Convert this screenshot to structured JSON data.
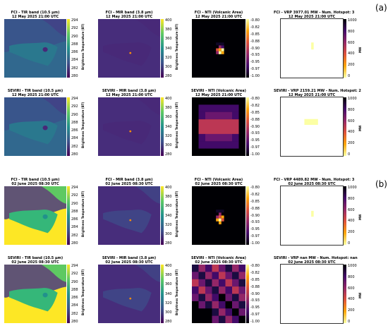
{
  "figure": {
    "groups": [
      {
        "label": "(a)",
        "rows": [
          {
            "sensor": "FCI",
            "panels": [
              {
                "kind": "tir",
                "title": "FCI - TIR band (10.5 µm)",
                "subtitle": "12 May 2025 21:00 UTC",
                "colorbar": {
                  "label": "Brightness Temperature (BT)",
                  "ticks": [
                    "294",
                    "292",
                    "290",
                    "288",
                    "286",
                    "284",
                    "282",
                    "280"
                  ],
                  "range": [
                    280,
                    295
                  ],
                  "cmap": "viridis"
                }
              },
              {
                "kind": "mir",
                "title": "FCI - MIR band (3.8 µm)",
                "subtitle": "12 May 2025 21:00 UTC",
                "colorbar": {
                  "label": "Brightness Temperature (BT)",
                  "ticks": [
                    "400",
                    "380",
                    "360",
                    "340",
                    "320",
                    "300",
                    "280"
                  ],
                  "range": [
                    280,
                    400
                  ],
                  "cmap": "viridis"
                }
              },
              {
                "kind": "nti",
                "title": "FCI - NTI (Volcanic Area)",
                "subtitle": "12 May 2025 21:00 UTC",
                "colorbar": {
                  "label": "",
                  "ticks": [
                    "-0.80",
                    "-0.82",
                    "-0.85",
                    "-0.88",
                    "-0.90",
                    "-0.93",
                    "-0.95",
                    "-0.97",
                    "-1.00"
                  ],
                  "range": [
                    -1.0,
                    -0.8
                  ],
                  "cmap": "inferno"
                }
              },
              {
                "kind": "vrp",
                "title": "FCI - VRP 3977.01 MW - Num. Hotspot: 3",
                "subtitle": "12 May 2025 21:00 UTC",
                "colorbar": {
                  "label": "MW",
                  "ticks": [
                    "1000",
                    "800",
                    "600",
                    "400",
                    "200",
                    "0"
                  ],
                  "range": [
                    0,
                    1000
                  ],
                  "cmap": "inferno_r"
                }
              }
            ]
          },
          {
            "sensor": "SEVIRI",
            "panels": [
              {
                "kind": "tir",
                "title": "SEVIRI - TIR band (10.5 µm)",
                "subtitle": "12 May 2025 21:00 UTC",
                "colorbar": {
                  "label": "Brightness Temperature (BT)",
                  "ticks": [
                    "294",
                    "292",
                    "290",
                    "288",
                    "286",
                    "284",
                    "282",
                    "280"
                  ],
                  "range": [
                    280,
                    295
                  ],
                  "cmap": "viridis"
                }
              },
              {
                "kind": "mir",
                "title": "SEVIRI - MIR band (3.8 µm)",
                "subtitle": "12 May 2025 21:00 UTC",
                "colorbar": {
                  "label": "Brightness Temperature (BT)",
                  "ticks": [
                    "400",
                    "380",
                    "360",
                    "340",
                    "320",
                    "300",
                    "280"
                  ],
                  "range": [
                    280,
                    400
                  ],
                  "cmap": "viridis"
                }
              },
              {
                "kind": "nti",
                "title": "SEVIRI - NTI (Volcanic Area)",
                "subtitle": "12 May 2025 21:00 UTC",
                "colorbar": {
                  "label": "",
                  "ticks": [
                    "-0.80",
                    "-0.82",
                    "-0.85",
                    "-0.88",
                    "-0.90",
                    "-0.93",
                    "-0.95",
                    "-0.97",
                    "-1.00"
                  ],
                  "range": [
                    -1.0,
                    -0.8
                  ],
                  "cmap": "inferno"
                }
              },
              {
                "kind": "vrp",
                "title": "SEVIRI - VRP 2159.21 MW - Num. Hotspot: 2",
                "subtitle": "12 May 2025 21:00 UTC",
                "colorbar": {
                  "label": "MW",
                  "ticks": [
                    "1000",
                    "800",
                    "600",
                    "400",
                    "200",
                    "0"
                  ],
                  "range": [
                    0,
                    1000
                  ],
                  "cmap": "inferno_r"
                }
              }
            ]
          }
        ]
      },
      {
        "label": "(b)",
        "rows": [
          {
            "sensor": "FCI",
            "panels": [
              {
                "kind": "tir",
                "title": "FCI - TIR band (10.5 µm)",
                "subtitle": "02 June 2025 08:30 UTC",
                "colorbar": {
                  "label": "Brightness Temperature (BT)",
                  "ticks": [
                    "294",
                    "292",
                    "290",
                    "288",
                    "286",
                    "284",
                    "282",
                    "280"
                  ],
                  "range": [
                    280,
                    295
                  ],
                  "cmap": "viridis"
                }
              },
              {
                "kind": "mir",
                "title": "FCI - MIR band (3.8 µm)",
                "subtitle": "02 June 2025 08:30 UTC",
                "colorbar": {
                  "label": "Brightness Temperature (BT)",
                  "ticks": [
                    "400",
                    "380",
                    "360",
                    "340",
                    "320",
                    "300",
                    "280"
                  ],
                  "range": [
                    280,
                    400
                  ],
                  "cmap": "viridis"
                }
              },
              {
                "kind": "nti",
                "title": "FCI - NTI (Volcanic Area)",
                "subtitle": "02 June 2025 08:30 UTC",
                "colorbar": {
                  "label": "",
                  "ticks": [
                    "-0.80",
                    "-0.82",
                    "-0.85",
                    "-0.88",
                    "-0.90",
                    "-0.93",
                    "-0.95",
                    "-0.97",
                    "-1.00"
                  ],
                  "range": [
                    -1.0,
                    -0.8
                  ],
                  "cmap": "inferno"
                }
              },
              {
                "kind": "vrp",
                "title": "FCI - VRP 4489.82 MW - Num. Hotspot: 3",
                "subtitle": "02 June 2025 08:30 UTC",
                "colorbar": {
                  "label": "MW",
                  "ticks": [
                    "1000",
                    "800",
                    "600",
                    "400",
                    "200",
                    "0"
                  ],
                  "range": [
                    0,
                    1000
                  ],
                  "cmap": "inferno_r"
                }
              }
            ]
          },
          {
            "sensor": "SEVIRI",
            "panels": [
              {
                "kind": "tir",
                "title": "SEVIRI - TIR band (10.5 µm)",
                "subtitle": "02 June 2025 08:30 UTC",
                "colorbar": {
                  "label": "Brightness Temperature (BT)",
                  "ticks": [
                    "294",
                    "292",
                    "290",
                    "288",
                    "286",
                    "284",
                    "282",
                    "280"
                  ],
                  "range": [
                    280,
                    295
                  ],
                  "cmap": "viridis"
                }
              },
              {
                "kind": "mir",
                "title": "SEVIRI - MIR band (3.8 µm)",
                "subtitle": "02 June 2025 08:30 UTC",
                "colorbar": {
                  "label": "Brightness Temperature (BT)",
                  "ticks": [
                    "400",
                    "380",
                    "360",
                    "340",
                    "320",
                    "300",
                    "280"
                  ],
                  "range": [
                    280,
                    400
                  ],
                  "cmap": "viridis"
                }
              },
              {
                "kind": "nti",
                "title": "SEVIRI - NTI (Volcanic Area)",
                "subtitle": "02 June 2025 08:30 UTC",
                "colorbar": {
                  "label": "",
                  "ticks": [
                    "-0.80",
                    "-0.82",
                    "-0.85",
                    "-0.88",
                    "-0.90",
                    "-0.93",
                    "-0.95",
                    "-0.97",
                    "-1.00"
                  ],
                  "range": [
                    -1.0,
                    -0.8
                  ],
                  "cmap": "inferno"
                }
              },
              {
                "kind": "vrp",
                "title": "SEVIRI - VRP nan MW - Num. Hotspot: nan",
                "subtitle": "02 June 2025 08:30 UTC",
                "colorbar": {
                  "label": "MW",
                  "ticks": [
                    "1000",
                    "800",
                    "600",
                    "400",
                    "200",
                    "0"
                  ],
                  "range": [
                    0,
                    1000
                  ],
                  "cmap": "inferno_r"
                }
              }
            ]
          }
        ]
      }
    ]
  },
  "colors": {
    "viridis": [
      "#440154",
      "#3b528b",
      "#21918c",
      "#5ec962",
      "#fde725"
    ],
    "inferno": [
      "#000004",
      "#420a68",
      "#932667",
      "#dd513a",
      "#fca50a",
      "#fcffa4"
    ],
    "inferno_r": [
      "#fcffa4",
      "#fca50a",
      "#dd513a",
      "#932667",
      "#420a68",
      "#000004"
    ],
    "tir_cold": "#443983",
    "tir_mid": "#31688e",
    "tir_warm_land": "#35b779",
    "tir_sea_day": "#fde725",
    "mir_bg": "#472d7b",
    "mir_land": "#3e4a89",
    "hotspot_yellow": "#fcffa4",
    "hotspot_orange": "#f98e09"
  }
}
